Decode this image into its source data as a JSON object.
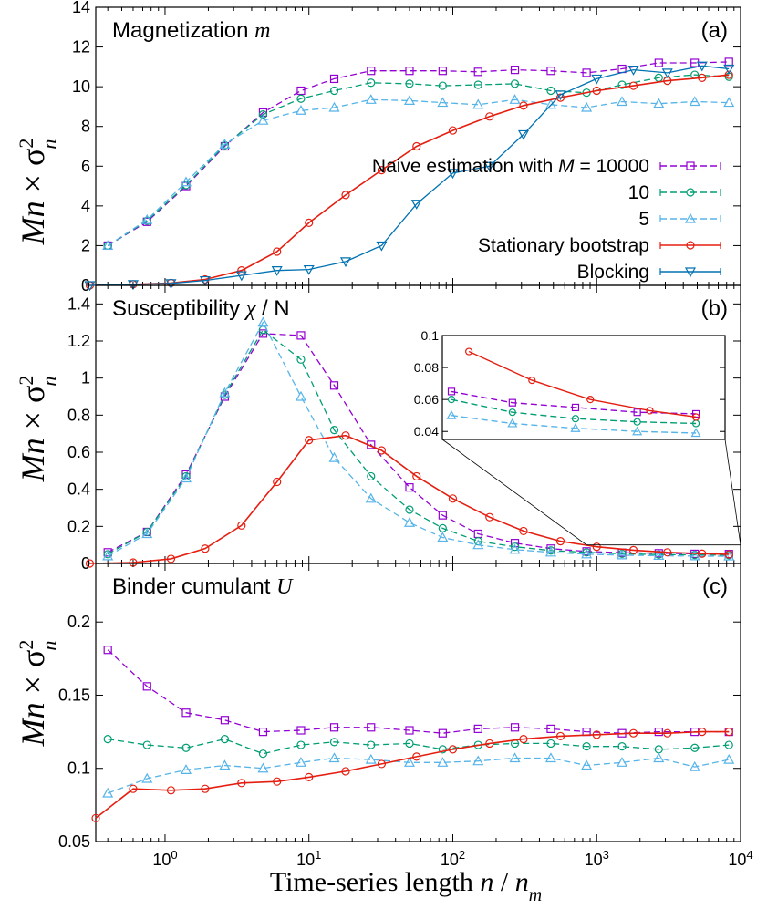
{
  "x_axis": {
    "label_prefix": "Time-series length ",
    "label_var": "n",
    "label_sep": " / ",
    "label_var2": "n",
    "label_sub": "m",
    "range": [
      0.33,
      10000
    ],
    "tick_base": "10",
    "tick_exponents": [
      "0",
      "1",
      "2",
      "3",
      "4"
    ]
  },
  "y_axis_label": {
    "main": "Mn",
    "times": " × ",
    "sigma": "σ",
    "sup": "2",
    "sub": "n"
  },
  "legend": {
    "naive_prefix": "Naive estimation with ",
    "naive_var": "M",
    "naive_eq": " = 10000",
    "m10": "10",
    "m5": "5",
    "stationary": "Stationary bootstrap",
    "blocking": "Blocking"
  },
  "colors": {
    "m10000": "#9400d3",
    "m10": "#009e73",
    "m5": "#56b4e9",
    "stationary": "#e51e10",
    "blocking": "#0072b2"
  },
  "chart_data": [
    {
      "type": "line",
      "panel_label": "(a)",
      "title": "Magnetization ",
      "title_var": "m",
      "ylim": [
        0,
        14
      ],
      "yticks": [
        "0",
        "2",
        "4",
        "6",
        "8",
        "10",
        "12",
        "14"
      ],
      "x": [
        0.4,
        0.75,
        1.4,
        2.6,
        4.8,
        8.8,
        15,
        27,
        50,
        85,
        150,
        270,
        480,
        850,
        1500,
        2700,
        4800,
        8300
      ],
      "series": [
        {
          "name": "Naive M=10000",
          "key": "m10000",
          "marker": "square",
          "values": [
            2.0,
            3.2,
            5.0,
            7.0,
            8.7,
            9.8,
            10.4,
            10.8,
            10.8,
            10.8,
            10.75,
            10.85,
            10.8,
            10.7,
            10.9,
            11.2,
            11.2,
            11.25
          ]
        },
        {
          "name": "10",
          "key": "m10",
          "marker": "circle",
          "values": [
            2.0,
            3.25,
            5.05,
            7.05,
            8.6,
            9.4,
            9.8,
            10.2,
            10.15,
            10.05,
            10.1,
            10.15,
            9.8,
            9.7,
            10.1,
            10.45,
            10.6,
            10.5
          ]
        },
        {
          "name": "5",
          "key": "m5",
          "marker": "triangle",
          "values": [
            2.0,
            3.3,
            5.2,
            7.1,
            8.3,
            8.8,
            8.95,
            9.35,
            9.3,
            9.2,
            9.1,
            9.35,
            9.1,
            8.95,
            9.25,
            9.15,
            9.25,
            9.2
          ]
        },
        {
          "name": "Stationary bootstrap",
          "key": "stationary",
          "marker": "circle",
          "x": [
            0.3,
            0.6,
            1.1,
            1.9,
            3.4,
            6,
            10,
            18,
            32,
            56,
            100,
            180,
            310,
            560,
            1000,
            1800,
            3100,
            5400,
            8300
          ],
          "values": [
            0.0,
            0.05,
            0.12,
            0.3,
            0.75,
            1.7,
            3.15,
            4.55,
            5.8,
            7.0,
            7.8,
            8.5,
            9.05,
            9.45,
            9.8,
            10.05,
            10.3,
            10.45,
            10.6
          ]
        },
        {
          "name": "Blocking",
          "key": "blocking",
          "marker": "triangle-down",
          "x": [
            0.3,
            0.6,
            1.1,
            1.9,
            3.4,
            6,
            10,
            18,
            32,
            56,
            100,
            180,
            310,
            560,
            1000,
            1800,
            3100,
            5400,
            8300
          ],
          "values": [
            0.0,
            0.05,
            0.1,
            0.25,
            0.5,
            0.75,
            0.8,
            1.2,
            2.0,
            4.1,
            5.65,
            6.0,
            7.6,
            9.6,
            10.4,
            10.85,
            10.7,
            11.05,
            10.9
          ]
        }
      ]
    },
    {
      "type": "line",
      "panel_label": "(b)",
      "title": "Susceptibility ",
      "title_var": "χ",
      "title_tail": " / N",
      "ylim": [
        0,
        1.5
      ],
      "yticks": [
        "0",
        "0.2",
        "0.4",
        "0.6",
        "0.8",
        "1",
        "1.2",
        "1.4"
      ],
      "x": [
        0.4,
        0.75,
        1.4,
        2.6,
        4.8,
        8.8,
        15,
        27,
        50,
        85,
        150,
        270,
        480,
        850,
        1500,
        2700,
        4800,
        8300
      ],
      "series": [
        {
          "name": "Naive M=10000",
          "key": "m10000",
          "marker": "square",
          "values": [
            0.06,
            0.17,
            0.48,
            0.9,
            1.24,
            1.23,
            0.96,
            0.64,
            0.41,
            0.26,
            0.16,
            0.11,
            0.08,
            0.065,
            0.058,
            0.055,
            0.052,
            0.051
          ]
        },
        {
          "name": "10",
          "key": "m10",
          "marker": "circle",
          "values": [
            0.05,
            0.17,
            0.47,
            0.91,
            1.26,
            1.1,
            0.72,
            0.47,
            0.29,
            0.19,
            0.12,
            0.09,
            0.07,
            0.06,
            0.052,
            0.048,
            0.046,
            0.045
          ]
        },
        {
          "name": "5",
          "key": "m5",
          "marker": "triangle",
          "values": [
            0.04,
            0.16,
            0.46,
            0.92,
            1.3,
            0.9,
            0.57,
            0.35,
            0.22,
            0.14,
            0.1,
            0.075,
            0.06,
            0.05,
            0.045,
            0.042,
            0.04,
            0.039
          ]
        },
        {
          "name": "Stationary bootstrap",
          "key": "stationary",
          "marker": "circle",
          "x": [
            0.3,
            0.6,
            1.1,
            1.9,
            3.4,
            6,
            10,
            18,
            32,
            56,
            100,
            180,
            310,
            560,
            1000,
            1800,
            3100,
            5400,
            8300
          ],
          "values": [
            0.0,
            0.005,
            0.025,
            0.08,
            0.205,
            0.44,
            0.665,
            0.69,
            0.61,
            0.47,
            0.35,
            0.25,
            0.175,
            0.12,
            0.09,
            0.072,
            0.06,
            0.053,
            0.049
          ]
        }
      ],
      "inset": {
        "ylim": [
          0.035,
          0.1
        ],
        "xlim": [
          850,
          10000
        ],
        "yticks": [
          "0.04",
          "0.06",
          "0.08",
          "0.1"
        ]
      }
    },
    {
      "type": "line",
      "panel_label": "(c)",
      "title": "Binder cumulant ",
      "title_var": "U",
      "ylim": [
        0.05,
        0.24
      ],
      "yticks": [
        "0.05",
        "0.1",
        "0.15",
        "0.2"
      ],
      "x": [
        0.4,
        0.75,
        1.4,
        2.6,
        4.8,
        8.8,
        15,
        27,
        50,
        85,
        150,
        270,
        480,
        850,
        1500,
        2700,
        4800,
        8300
      ],
      "series": [
        {
          "name": "Naive M=10000",
          "key": "m10000",
          "marker": "square",
          "values": [
            0.181,
            0.156,
            0.138,
            0.133,
            0.125,
            0.126,
            0.128,
            0.128,
            0.126,
            0.124,
            0.127,
            0.128,
            0.127,
            0.125,
            0.124,
            0.125,
            0.125,
            0.125
          ]
        },
        {
          "name": "10",
          "key": "m10",
          "marker": "circle",
          "values": [
            0.12,
            0.116,
            0.114,
            0.12,
            0.11,
            0.116,
            0.118,
            0.116,
            0.117,
            0.113,
            0.116,
            0.117,
            0.117,
            0.115,
            0.115,
            0.113,
            0.114,
            0.116
          ]
        },
        {
          "name": "5",
          "key": "m5",
          "marker": "triangle",
          "values": [
            0.083,
            0.093,
            0.099,
            0.102,
            0.1,
            0.104,
            0.107,
            0.106,
            0.104,
            0.104,
            0.105,
            0.107,
            0.107,
            0.102,
            0.104,
            0.107,
            0.101,
            0.106
          ]
        },
        {
          "name": "Stationary bootstrap",
          "key": "stationary",
          "marker": "circle",
          "x": [
            0.33,
            0.6,
            1.1,
            1.9,
            3.4,
            6,
            10,
            18,
            32,
            56,
            100,
            180,
            310,
            560,
            1000,
            1800,
            3100,
            5400,
            8300
          ],
          "values": [
            0.066,
            0.086,
            0.085,
            0.086,
            0.09,
            0.091,
            0.094,
            0.098,
            0.103,
            0.108,
            0.113,
            0.117,
            0.12,
            0.122,
            0.123,
            0.124,
            0.124,
            0.125,
            0.125
          ]
        }
      ]
    }
  ]
}
